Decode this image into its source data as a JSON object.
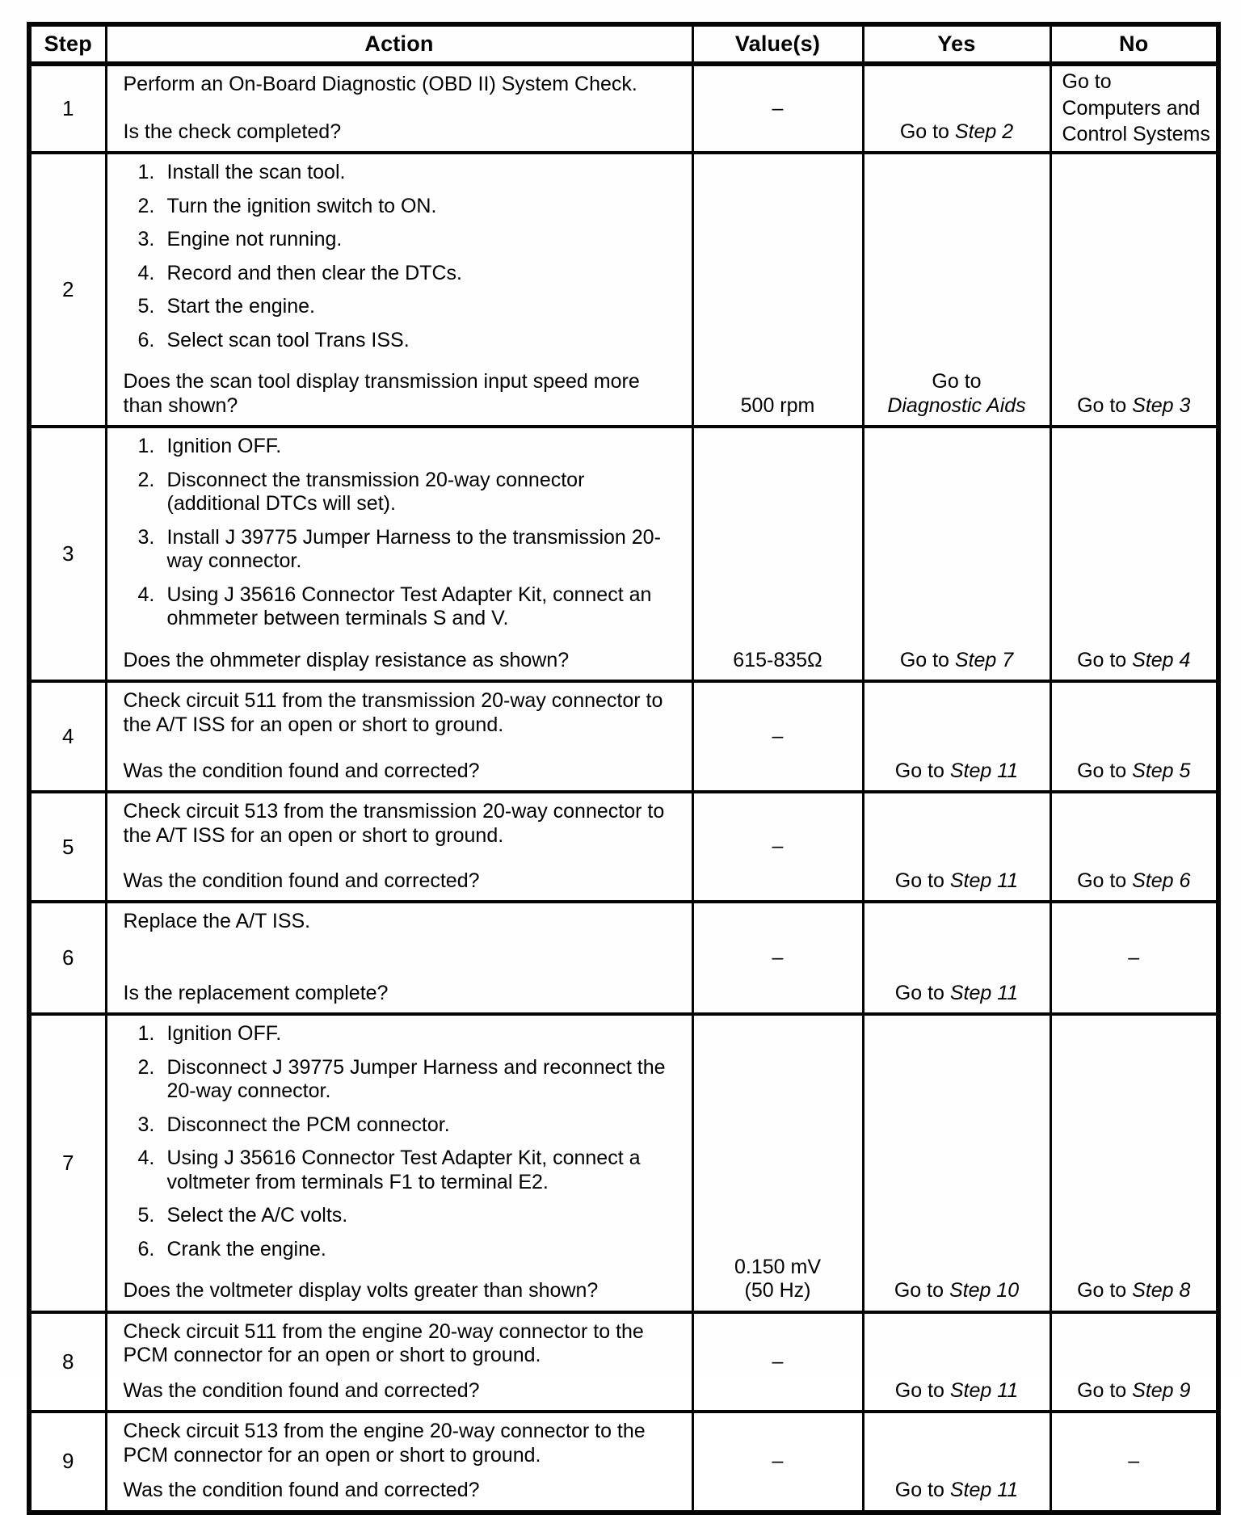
{
  "table": {
    "headers": [
      "Step",
      "Action",
      "Value(s)",
      "Yes",
      "No"
    ],
    "rows": [
      {
        "step": "1",
        "action": {
          "paragraphs": [
            "Perform an On-Board Diagnostic (OBD II) System Check."
          ],
          "question": "Is the check completed?"
        },
        "value": {
          "align": "middle",
          "lines": [
            {
              "pre": "–"
            }
          ]
        },
        "yes": {
          "align": "bottom",
          "lines": [
            {
              "pre": "Go to ",
              "it": "Step 2"
            }
          ]
        },
        "no": {
          "align": "middle",
          "align_h": "left",
          "lines": [
            {
              "pre": "Go to"
            },
            {
              "pre": "Computers and"
            },
            {
              "pre": "Control Systems"
            }
          ]
        }
      },
      {
        "step": "2",
        "action": {
          "items": [
            "Install the scan tool.",
            "Turn the ignition switch to ON.",
            "Engine not running.",
            "Record and then clear the DTCs.",
            "Start the engine.",
            "Select scan tool Trans ISS."
          ],
          "question": "Does the scan tool display transmission input speed more than shown?"
        },
        "value": {
          "align": "bottom",
          "lines": [
            {
              "pre": "500 rpm"
            }
          ]
        },
        "yes": {
          "align": "bottom",
          "lines": [
            {
              "pre": "Go to"
            },
            {
              "it": "Diagnostic Aids"
            }
          ]
        },
        "no": {
          "align": "bottom",
          "lines": [
            {
              "pre": "Go to ",
              "it": "Step 3"
            }
          ]
        }
      },
      {
        "step": "3",
        "action": {
          "items": [
            "Ignition OFF.",
            "Disconnect the transmission 20-way connector (additional DTCs will set).",
            "Install J 39775 Jumper Harness to the transmission 20-way connector.",
            "Using J 35616 Connector Test Adapter Kit, connect an ohmmeter between terminals S and V."
          ],
          "question": "Does the ohmmeter display resistance as shown?"
        },
        "value": {
          "align": "bottom",
          "lines": [
            {
              "pre": "615-835Ω"
            }
          ]
        },
        "yes": {
          "align": "bottom",
          "lines": [
            {
              "pre": "Go to ",
              "it": "Step 7"
            }
          ]
        },
        "no": {
          "align": "bottom",
          "lines": [
            {
              "pre": "Go to ",
              "it": "Step 4"
            }
          ]
        }
      },
      {
        "step": "4",
        "action": {
          "paragraphs": [
            "Check circuit 511 from the transmission 20-way connector to the A/T ISS for an open or short to ground."
          ],
          "question": "Was the condition found and corrected?"
        },
        "value": {
          "align": "middle",
          "lines": [
            {
              "pre": "–"
            }
          ]
        },
        "yes": {
          "align": "bottom",
          "lines": [
            {
              "pre": "Go to ",
              "it": "Step 11"
            }
          ]
        },
        "no": {
          "align": "bottom",
          "lines": [
            {
              "pre": "Go to ",
              "it": "Step 5"
            }
          ]
        }
      },
      {
        "step": "5",
        "action": {
          "paragraphs": [
            "Check circuit 513 from the transmission 20-way connector to the A/T ISS for an open or short to ground."
          ],
          "question": "Was the condition found and corrected?"
        },
        "value": {
          "align": "middle",
          "lines": [
            {
              "pre": "–"
            }
          ]
        },
        "yes": {
          "align": "bottom",
          "lines": [
            {
              "pre": "Go to ",
              "it": "Step 11"
            }
          ]
        },
        "no": {
          "align": "bottom",
          "lines": [
            {
              "pre": "Go to ",
              "it": "Step 6"
            }
          ]
        }
      },
      {
        "step": "6",
        "action": {
          "paragraphs": [
            "Replace the A/T ISS."
          ],
          "question": "Is the replacement complete?"
        },
        "value": {
          "align": "middle",
          "lines": [
            {
              "pre": "–"
            }
          ]
        },
        "yes": {
          "align": "bottom",
          "lines": [
            {
              "pre": "Go to ",
              "it": "Step 11"
            }
          ]
        },
        "no": {
          "align": "middle",
          "lines": [
            {
              "pre": "–"
            }
          ]
        }
      },
      {
        "step": "7",
        "action": {
          "items": [
            "Ignition OFF.",
            "Disconnect J 39775 Jumper Harness and reconnect the 20-way connector.",
            "Disconnect the PCM connector.",
            "Using J 35616 Connector Test Adapter Kit, connect a voltmeter from terminals F1 to terminal E2.",
            "Select the A/C volts.",
            "Crank the engine."
          ],
          "question": "Does the voltmeter display volts greater than shown?"
        },
        "value": {
          "align": "bottom",
          "lines": [
            {
              "pre": "0.150 mV"
            },
            {
              "pre": "(50 Hz)"
            }
          ]
        },
        "yes": {
          "align": "bottom",
          "lines": [
            {
              "pre": "Go to ",
              "it": "Step 10"
            }
          ]
        },
        "no": {
          "align": "bottom",
          "lines": [
            {
              "pre": "Go to ",
              "it": "Step 8"
            }
          ]
        }
      },
      {
        "step": "8",
        "action": {
          "paragraphs": [
            "Check circuit 511 from the engine 20-way connector to the PCM connector for an open or short to ground."
          ],
          "question": "Was the condition found and corrected?"
        },
        "value": {
          "align": "middle",
          "lines": [
            {
              "pre": "–"
            }
          ]
        },
        "yes": {
          "align": "bottom",
          "lines": [
            {
              "pre": "Go to ",
              "it": "Step 11"
            }
          ]
        },
        "no": {
          "align": "bottom",
          "lines": [
            {
              "pre": "Go to ",
              "it": "Step 9"
            }
          ]
        }
      },
      {
        "step": "9",
        "action": {
          "paragraphs": [
            "Check circuit 513 from the engine 20-way connector to the PCM connector for an open or short to ground."
          ],
          "question": "Was the condition found and corrected?"
        },
        "value": {
          "align": "middle",
          "lines": [
            {
              "pre": "–"
            }
          ]
        },
        "yes": {
          "align": "bottom",
          "lines": [
            {
              "pre": "Go to ",
              "it": "Step 11"
            }
          ]
        },
        "no": {
          "align": "middle",
          "lines": [
            {
              "pre": "–"
            }
          ]
        }
      }
    ]
  }
}
